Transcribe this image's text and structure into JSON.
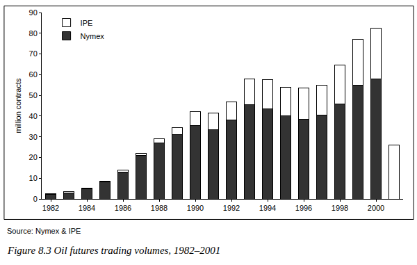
{
  "chart_data": {
    "type": "bar",
    "stacked": true,
    "title": "Figure 8.3 Oil futures trading volumes, 1982–2001",
    "annotations": [
      "Source: Nymex & IPE"
    ],
    "y_label": "million contracts",
    "categories": [
      "1982",
      null,
      "1984",
      null,
      "1986",
      null,
      "1988",
      null,
      "1990",
      null,
      "1992",
      null,
      "1994",
      null,
      "1996",
      null,
      "1998",
      null,
      "2000",
      null
    ],
    "series": [
      {
        "name": "Nymex",
        "color": "#333333",
        "values": [
          2.3,
          3,
          5,
          8.1,
          13,
          21,
          27,
          31,
          35.5,
          33.5,
          38,
          45.5,
          43.5,
          40,
          38.5,
          40.5,
          46,
          55,
          58,
          null
        ]
      },
      {
        "name": "IPE",
        "color": "#ffffff",
        "values": [
          0.3,
          0.5,
          0.3,
          0.4,
          1,
          1,
          2,
          3.5,
          6.5,
          8,
          9,
          12.5,
          14,
          14,
          15,
          14.5,
          18.5,
          22,
          24.5,
          26
        ]
      }
    ],
    "ylim": [
      0,
      90
    ],
    "yticks": [
      0,
      10,
      20,
      30,
      40,
      50,
      60,
      70,
      80,
      90
    ],
    "grid": false,
    "legend": "top left"
  }
}
